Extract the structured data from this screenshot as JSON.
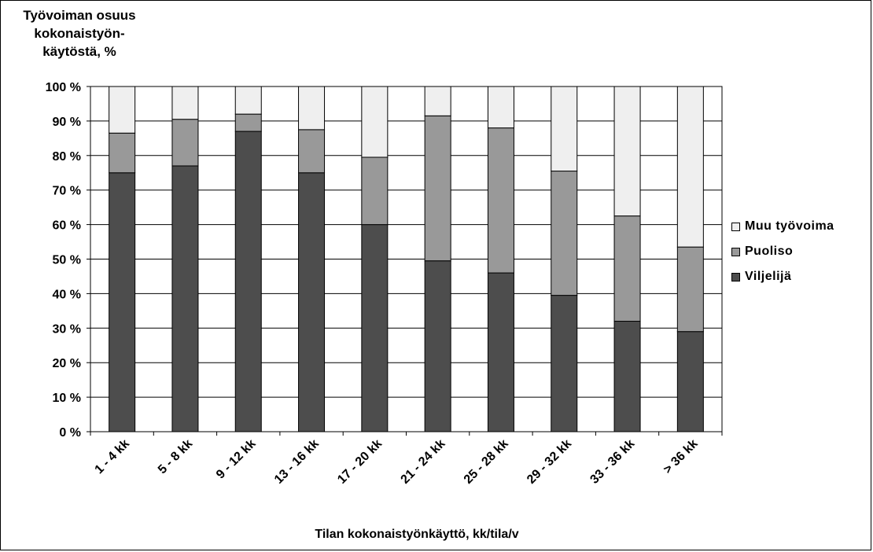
{
  "chart_data": {
    "type": "bar",
    "stacked": true,
    "title_lines": [
      "Työvoiman osuus",
      "kokonaistyön-",
      "käytöstä, %"
    ],
    "xlabel": "Tilan kokonaistyönkäyttö, kk/tila/v",
    "ylabel": "",
    "ylim": [
      0,
      100
    ],
    "yticks": [
      "0 %",
      "10 %",
      "20 %",
      "30 %",
      "40 %",
      "50 %",
      "60 %",
      "70 %",
      "80 %",
      "90 %",
      "100 %"
    ],
    "categories": [
      "1 - 4 kk",
      "5 - 8 kk",
      "9 - 12 kk",
      "13 - 16 kk",
      "17 - 20 kk",
      "21 - 24 kk",
      "25 - 28 kk",
      "29 - 32 kk",
      "33 - 36 kk",
      "> 36 kk"
    ],
    "series": [
      {
        "name": "Viljelijä",
        "color": "#4d4d4d",
        "values": [
          75,
          77,
          87,
          75,
          60,
          49.5,
          46,
          39.5,
          32,
          29
        ]
      },
      {
        "name": "Puoliso",
        "color": "#999999",
        "values": [
          11.5,
          13.5,
          5,
          12.5,
          19.5,
          42,
          42,
          36,
          30.5,
          24.5
        ]
      },
      {
        "name": "Muu työvoima",
        "color": "#efefef",
        "values": [
          13.5,
          9.5,
          8,
          12.5,
          20.5,
          8.5,
          12,
          24.5,
          37.5,
          46.5
        ]
      }
    ],
    "legend_order": [
      "Muu työvoima",
      "Puoliso",
      "Viljelijä"
    ],
    "legend_position": "right",
    "grid": true
  }
}
